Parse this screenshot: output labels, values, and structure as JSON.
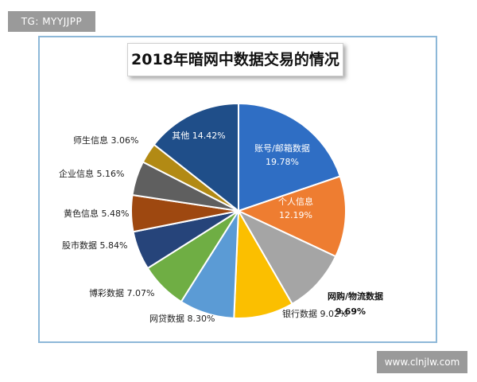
{
  "watermark_top": "TG: MYYJJPP",
  "watermark_bottom": "www.clnjlw.com",
  "colors": {
    "frame": "#8db8d8",
    "watermark_bg": "#9a9a9a"
  },
  "chart_data": {
    "type": "pie",
    "title": "2018年暗网中数据交易的情况",
    "slices": [
      {
        "name": "账号/邮箱数据",
        "value": 19.78,
        "label": "19.78%",
        "color": "#2f6ec4"
      },
      {
        "name": "个人信息",
        "value": 12.19,
        "label": "12.19%",
        "color": "#ee7d31"
      },
      {
        "name": "网购/物流数据",
        "value": 9.69,
        "label": "9.69%",
        "color": "#a5a5a5"
      },
      {
        "name": "银行数据",
        "value": 9.02,
        "label": "9.02%",
        "color": "#fbbf00"
      },
      {
        "name": "网贷数据",
        "value": 8.3,
        "label": "8.30%",
        "color": "#5b9bd5"
      },
      {
        "name": "博彩数据",
        "value": 7.07,
        "label": "7.07%",
        "color": "#6fae44"
      },
      {
        "name": "股市数据",
        "value": 5.84,
        "label": "5.84%",
        "color": "#26447a"
      },
      {
        "name": "黄色信息",
        "value": 5.48,
        "label": "5.48%",
        "color": "#9e4810"
      },
      {
        "name": "企业信息",
        "value": 5.16,
        "label": "5.16%",
        "color": "#5f5f5f"
      },
      {
        "name": "师生信息",
        "value": 3.06,
        "label": "3.06%",
        "color": "#b28a14"
      },
      {
        "name": "其他",
        "value": 14.42,
        "label": "14.42%",
        "color": "#1f4e89"
      }
    ]
  }
}
